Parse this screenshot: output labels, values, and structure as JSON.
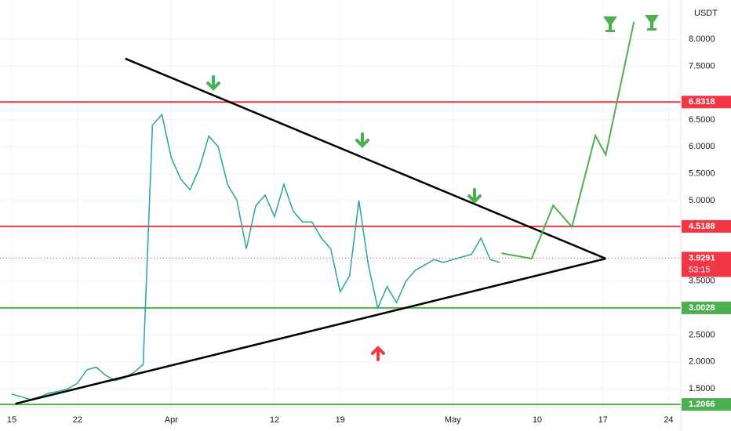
{
  "chart_data": {
    "type": "line",
    "currency": "USDT",
    "x": [
      0,
      1,
      2,
      3,
      4,
      5,
      6,
      7,
      8,
      9,
      10,
      11,
      12,
      13,
      14,
      15,
      16,
      17,
      18,
      19,
      20,
      21,
      22,
      23,
      24,
      25,
      26,
      27,
      28,
      29,
      30,
      31,
      32,
      33,
      34,
      35,
      36,
      37,
      38,
      39,
      40,
      41,
      42,
      43,
      44,
      45,
      46,
      47,
      48,
      49,
      50,
      51,
      52
    ],
    "series": [
      {
        "color": "#26a69a",
        "values": [
          1.4,
          1.35,
          1.3,
          1.35,
          1.42,
          1.45,
          1.5,
          1.6,
          1.85,
          1.9,
          1.75,
          1.65,
          1.7,
          1.8,
          1.95,
          6.4,
          6.6,
          5.8,
          5.4,
          5.2,
          5.6,
          6.2,
          6.0,
          5.3,
          5.0,
          4.1,
          4.9,
          5.1,
          4.7,
          5.3,
          4.8,
          4.6,
          4.6,
          4.3,
          4.1,
          3.3,
          3.6,
          5.0,
          3.8,
          3.0,
          3.4,
          3.1,
          3.5,
          3.7,
          3.8,
          3.9,
          3.85,
          3.9,
          3.95,
          4.0,
          4.3,
          3.9,
          3.85
        ]
      }
    ],
    "xlim": [
      -1.25,
      71.3
    ],
    "ylim": [
      1.15,
      8.73
    ],
    "xticks": [
      {
        "value": 0,
        "label": "15"
      },
      {
        "value": 7,
        "label": "22"
      },
      {
        "value": 17,
        "label": "Apr"
      },
      {
        "value": 28,
        "label": "12"
      },
      {
        "value": 35,
        "label": "19"
      },
      {
        "value": 47,
        "label": "May"
      },
      {
        "value": 56,
        "label": "10"
      },
      {
        "value": 63,
        "label": "17"
      },
      {
        "value": 70,
        "label": "24"
      }
    ],
    "yticks": [
      {
        "value": 1.5,
        "label": "1.5000"
      },
      {
        "value": 2.0,
        "label": "2.0000"
      },
      {
        "value": 2.5,
        "label": "2.5000"
      },
      {
        "value": 3.5,
        "label": "3.5000"
      },
      {
        "value": 5.0,
        "label": "5.0000"
      },
      {
        "value": 5.5,
        "label": "5.5000"
      },
      {
        "value": 6.0,
        "label": "6.0000"
      },
      {
        "value": 6.5,
        "label": "6.5000"
      },
      {
        "value": 7.5,
        "label": "7.5000"
      },
      {
        "value": 8.0,
        "label": "8.0000"
      }
    ],
    "levels": [
      {
        "value": 6.8318,
        "color": "#f23645"
      },
      {
        "value": 4.5188,
        "color": "#f23645"
      },
      {
        "value": 3.0028,
        "color": "#4caf50"
      },
      {
        "value": 1.2066,
        "color": "#4caf50"
      }
    ],
    "last_price": {
      "value": 3.9291,
      "countdown": "53:15",
      "color": "#f23645"
    },
    "trendlines": [
      {
        "color": "#000000",
        "x": [
          12.1,
          63.3
        ],
        "y": [
          7.64,
          3.92
        ]
      },
      {
        "color": "#000000",
        "x": [
          0.4,
          63.3
        ],
        "y": [
          1.22,
          3.92
        ]
      }
    ],
    "projection": {
      "color": "#4caf50",
      "x": [
        52.2,
        55.4,
        57.7,
        59.7,
        62.2,
        63.3,
        66.3
      ],
      "y": [
        4.02,
        3.92,
        4.91,
        4.51,
        6.21,
        5.85,
        8.32
      ]
    },
    "grid": true
  }
}
